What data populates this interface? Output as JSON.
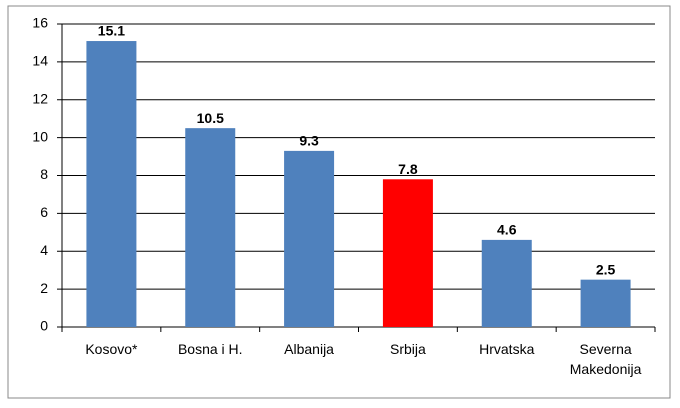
{
  "chart_data": {
    "type": "bar",
    "categories": [
      "Kosovo*",
      "Bosna i H.",
      "Albanija",
      "Srbija",
      "Hrvatska",
      "Severna Makedonija"
    ],
    "values": [
      15.1,
      10.5,
      9.3,
      7.8,
      4.6,
      2.5
    ],
    "colors": [
      "#4f81bd",
      "#4f81bd",
      "#4f81bd",
      "#ff0000",
      "#4f81bd",
      "#4f81bd"
    ],
    "ylim": [
      0,
      16
    ],
    "yticks": [
      0,
      2,
      4,
      6,
      8,
      10,
      12,
      14,
      16
    ],
    "grid": true
  }
}
